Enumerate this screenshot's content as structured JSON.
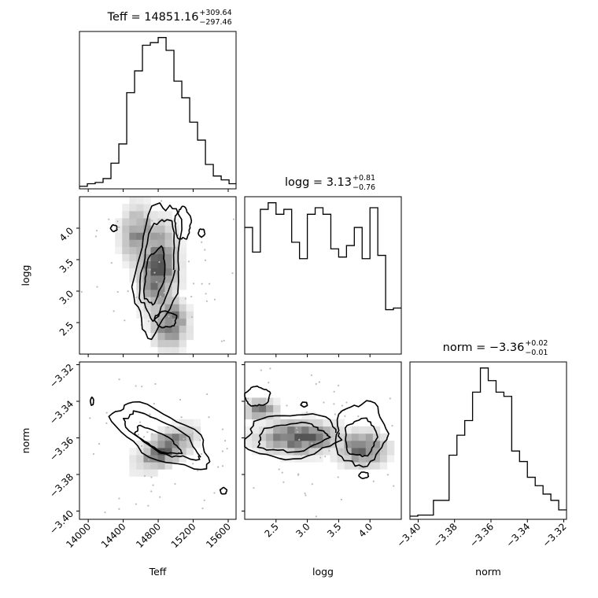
{
  "chart_data": {
    "type": "corner",
    "parameters": [
      "Teff",
      "logg",
      "norm"
    ],
    "histograms": [
      {
        "name": "Teff",
        "title_prefix": "Teff = ",
        "median": "14851.16",
        "plus": "+309.64",
        "minus": "−297.46",
        "x_ticks": [
          "14000",
          "14400",
          "14800",
          "15200",
          "15600"
        ],
        "xlim": [
          13900,
          15690
        ],
        "bin_edges": [
          13900,
          13990,
          14080,
          14170,
          14260,
          14350,
          14440,
          14530,
          14620,
          14710,
          14800,
          14890,
          14980,
          15070,
          15160,
          15250,
          15340,
          15430,
          15520,
          15610,
          15690
        ],
        "counts": [
          2,
          4,
          5,
          8,
          20,
          35,
          75,
          92,
          112,
          114,
          118,
          108,
          84,
          71,
          52,
          38,
          19,
          10,
          7,
          4
        ]
      },
      {
        "name": "logg",
        "title_prefix": "logg = ",
        "median": "3.13",
        "plus": "+0.81",
        "minus": "−0.76",
        "x_ticks": [
          "2.5",
          "3.0",
          "3.5",
          "4.0"
        ],
        "xlim": [
          2.0,
          4.5
        ],
        "bin_edges": [
          2.0,
          2.125,
          2.25,
          2.375,
          2.5,
          2.625,
          2.75,
          2.875,
          3.0,
          3.125,
          3.25,
          3.375,
          3.5,
          3.625,
          3.75,
          3.875,
          4.0,
          4.125,
          4.25,
          4.375,
          4.5
        ],
        "counts": [
          77,
          62,
          88,
          92,
          85,
          88,
          68,
          58,
          85,
          89,
          85,
          64,
          59,
          66,
          77,
          58,
          89,
          60,
          27,
          28
        ]
      },
      {
        "name": "norm",
        "title_prefix": "norm = ",
        "median": "−3.36",
        "plus": "+0.02",
        "minus": "−0.01",
        "x_ticks": [
          "−3.40",
          "−3.38",
          "−3.36",
          "−3.34",
          "−3.32"
        ],
        "x_tick_values": [
          -3.4,
          -3.38,
          -3.36,
          -3.34,
          -3.32
        ],
        "xlim": [
          -3.4045,
          -3.3185
        ],
        "bin_edges": [
          -3.4045,
          -3.4002,
          -3.3959,
          -3.3916,
          -3.3873,
          -3.383,
          -3.3787,
          -3.3744,
          -3.3701,
          -3.3658,
          -3.3615,
          -3.3572,
          -3.3529,
          -3.3486,
          -3.3443,
          -3.34,
          -3.3357,
          -3.3314,
          -3.3271,
          -3.3228,
          -3.3185
        ],
        "counts": [
          3,
          4,
          4,
          18,
          18,
          61,
          80,
          94,
          121,
          144,
          132,
          121,
          117,
          65,
          55,
          40,
          32,
          24,
          18,
          9
        ]
      }
    ],
    "panels": [
      {
        "x": "Teff",
        "y": "logg",
        "y_ticks": [
          "2.5",
          "3.0",
          "3.5",
          "4.0"
        ],
        "ylim": [
          2.0,
          4.5
        ]
      },
      {
        "x": "Teff",
        "y": "norm",
        "y_ticks": [
          "−3.32",
          "−3.34",
          "−3.36",
          "−3.38",
          "−3.40"
        ],
        "ylim": [
          -3.4045,
          -3.3185
        ]
      },
      {
        "x": "logg",
        "y": "norm",
        "y_ticks": [],
        "ylim": [
          -3.4045,
          -3.3185
        ]
      }
    ],
    "x_labels": [
      "Teff",
      "logg",
      "norm"
    ],
    "y_labels": [
      "logg",
      "norm"
    ],
    "grid": false,
    "colors": {
      "line": "#000000",
      "density": "#000000"
    }
  }
}
